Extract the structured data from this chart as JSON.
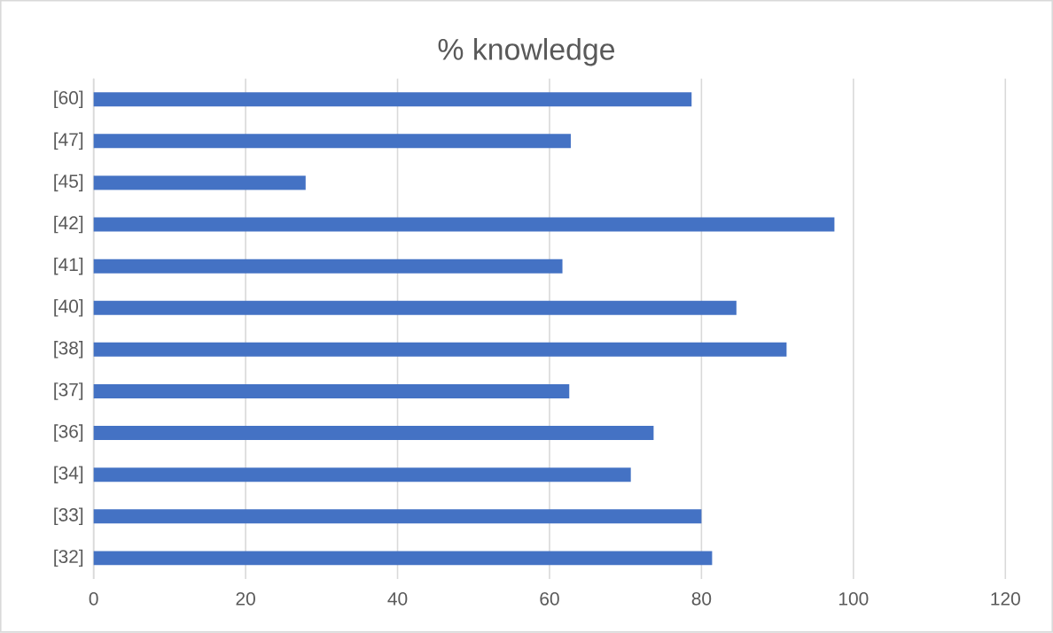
{
  "chart_data": {
    "type": "bar",
    "orientation": "horizontal",
    "title": "% knowledge",
    "categories": [
      "[60]",
      "[47]",
      "[45]",
      "[42]",
      "[41]",
      "[40]",
      "[38]",
      "[37]",
      "[36]",
      "[34]",
      "[33]",
      "[32]"
    ],
    "values": [
      78.7,
      62.8,
      27.9,
      97.5,
      61.7,
      84.6,
      91.2,
      62.6,
      73.7,
      70.7,
      80.0,
      81.4
    ],
    "color": "#4472c4",
    "xlim": [
      0,
      120
    ],
    "xticks": [
      0,
      20,
      40,
      60,
      80,
      100,
      120
    ],
    "grid": "x"
  }
}
